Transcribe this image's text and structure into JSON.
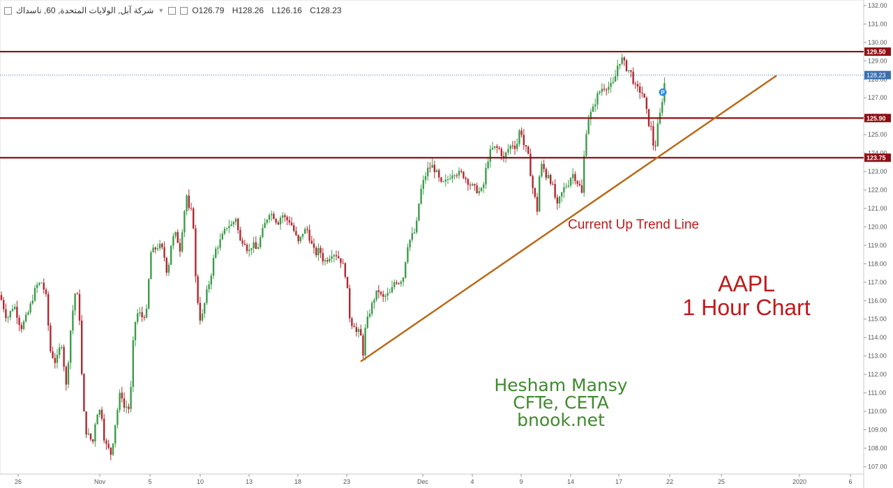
{
  "header": {
    "collapse_icon": "minus-square-icon",
    "symbol_title": "شركة آبل, الولايات المتحدة, 60, ناسداك",
    "dropdown_icon": "chevron-down-icon",
    "settings_icons": [
      "visibility-icon",
      "settings-icon"
    ],
    "ohlc": {
      "open": "O126.79",
      "high": "H128.26",
      "low": "L126.16",
      "close": "C128.23"
    }
  },
  "annotations": {
    "trend_label": "Current Up Trend Line",
    "chart_title_line1": "AAPL",
    "chart_title_line2": "1 Hour Chart",
    "author_name": "Hesham Mansy",
    "author_credentials": "CFTe, CETA",
    "author_site": "bnook.net"
  },
  "colors": {
    "up_candle": "#3c9c4a",
    "down_candle": "#b0272f",
    "support_resistance": "#8e0f14",
    "trend_line": "#b86a18",
    "price_line": "#3a6fb0",
    "annotation_red": "#c0191b",
    "annotation_green": "#3f8a2e",
    "label_bg": "#8e0f14",
    "price_label_bg": "#3a6fb0"
  },
  "chart_data": {
    "type": "candlestick",
    "y_axis": {
      "side": "right",
      "ylim": [
        106.6,
        132.3
      ],
      "ticks": [
        "107.00",
        "108.00",
        "109.00",
        "110.00",
        "111.00",
        "112.00",
        "113.00",
        "114.00",
        "115.00",
        "116.00",
        "117.00",
        "118.00",
        "119.00",
        "120.00",
        "121.00",
        "122.00",
        "123.00",
        "124.00",
        "125.00",
        "126.00",
        "127.00",
        "128.00",
        "129.00",
        "130.00",
        "131.00",
        "132.00"
      ]
    },
    "x_axis": {
      "labels": [
        "26",
        "Nov",
        "5",
        "10",
        "13",
        "18",
        "23",
        "Dec",
        "4",
        "9",
        "14",
        "17",
        "22",
        "25",
        "2020",
        "6"
      ]
    },
    "horizontal_levels": [
      {
        "label": "129.50",
        "value": 129.5
      },
      {
        "label": "125.90",
        "value": 125.9
      },
      {
        "label": "123.75",
        "value": 123.75
      }
    ],
    "current_price": {
      "label": "128.23",
      "value": 128.23
    },
    "trend_line": {
      "from": {
        "x_label": "23",
        "value": 112.7
      },
      "to": {
        "x_label": "22",
        "value": 128.2
      }
    },
    "price_path": [
      [
        0,
        116.3
      ],
      [
        10,
        115.0
      ],
      [
        20,
        115.8
      ],
      [
        30,
        114.5
      ],
      [
        40,
        115.3
      ],
      [
        52,
        116.8
      ],
      [
        60,
        117.0
      ],
      [
        66,
        116.2
      ],
      [
        72,
        113.3
      ],
      [
        80,
        112.6
      ],
      [
        88,
        113.8
      ],
      [
        95,
        111.3
      ],
      [
        102,
        114.8
      ],
      [
        108,
        116.5
      ],
      [
        113,
        116.0
      ],
      [
        118,
        111.2
      ],
      [
        122,
        109.0
      ],
      [
        128,
        108.6
      ],
      [
        133,
        108.3
      ],
      [
        138,
        109.9
      ],
      [
        145,
        110.1
      ],
      [
        150,
        108.3
      ],
      [
        155,
        108.0
      ],
      [
        160,
        107.6
      ],
      [
        163,
        108.8
      ],
      [
        168,
        110.0
      ],
      [
        173,
        111.2
      ],
      [
        178,
        110.2
      ],
      [
        183,
        110.3
      ],
      [
        186,
        110.0
      ],
      [
        192,
        114.6
      ],
      [
        198,
        115.4
      ],
      [
        204,
        115.1
      ],
      [
        210,
        115.4
      ],
      [
        216,
        118.6
      ],
      [
        222,
        118.8
      ],
      [
        228,
        119.0
      ],
      [
        234,
        118.7
      ],
      [
        240,
        117.4
      ],
      [
        246,
        119.3
      ],
      [
        252,
        119.6
      ],
      [
        258,
        118.8
      ],
      [
        264,
        120.8
      ],
      [
        268,
        121.8
      ],
      [
        272,
        120.5
      ],
      [
        276,
        121.2
      ],
      [
        280,
        117.4
      ],
      [
        286,
        115.0
      ],
      [
        290,
        115.2
      ],
      [
        296,
        116.4
      ],
      [
        302,
        117.3
      ],
      [
        308,
        118.7
      ],
      [
        314,
        119.1
      ],
      [
        320,
        119.6
      ],
      [
        326,
        120.1
      ],
      [
        332,
        120.1
      ],
      [
        338,
        120.5
      ],
      [
        344,
        119.2
      ],
      [
        350,
        119.3
      ],
      [
        356,
        118.6
      ],
      [
        362,
        119.1
      ],
      [
        368,
        118.7
      ],
      [
        374,
        119.5
      ],
      [
        380,
        120.2
      ],
      [
        386,
        120.8
      ],
      [
        392,
        120.6
      ],
      [
        398,
        120.2
      ],
      [
        404,
        120.7
      ],
      [
        410,
        120.4
      ],
      [
        416,
        120.3
      ],
      [
        422,
        119.7
      ],
      [
        428,
        119.1
      ],
      [
        434,
        119.7
      ],
      [
        440,
        119.9
      ],
      [
        446,
        119.1
      ],
      [
        452,
        118.5
      ],
      [
        458,
        118.8
      ],
      [
        464,
        118.1
      ],
      [
        470,
        118.3
      ],
      [
        476,
        118.6
      ],
      [
        482,
        118.5
      ],
      [
        488,
        118.2
      ],
      [
        494,
        117.7
      ],
      [
        498,
        116.5
      ],
      [
        502,
        114.8
      ],
      [
        508,
        114.7
      ],
      [
        512,
        114.1
      ],
      [
        516,
        114.5
      ],
      [
        520,
        113.0
      ],
      [
        524,
        114.6
      ],
      [
        530,
        115.4
      ],
      [
        536,
        116.1
      ],
      [
        542,
        116.6
      ],
      [
        548,
        116.1
      ],
      [
        554,
        116.3
      ],
      [
        560,
        116.4
      ],
      [
        566,
        117.1
      ],
      [
        572,
        117.0
      ],
      [
        578,
        117.3
      ],
      [
        584,
        119.0
      ],
      [
        590,
        119.5
      ],
      [
        596,
        119.8
      ],
      [
        602,
        121.8
      ],
      [
        608,
        122.6
      ],
      [
        614,
        123.2
      ],
      [
        620,
        123.3
      ],
      [
        626,
        122.9
      ],
      [
        632,
        122.3
      ],
      [
        638,
        122.4
      ],
      [
        644,
        122.7
      ],
      [
        650,
        123.0
      ],
      [
        656,
        122.9
      ],
      [
        662,
        122.9
      ],
      [
        668,
        122.6
      ],
      [
        674,
        122.3
      ],
      [
        680,
        122.1
      ],
      [
        686,
        121.9
      ],
      [
        692,
        122.0
      ],
      [
        698,
        123.5
      ],
      [
        704,
        124.2
      ],
      [
        710,
        124.3
      ],
      [
        716,
        124.2
      ],
      [
        722,
        123.7
      ],
      [
        728,
        124.2
      ],
      [
        734,
        124.5
      ],
      [
        740,
        124.3
      ],
      [
        746,
        125.5
      ],
      [
        750,
        124.5
      ],
      [
        754,
        124.2
      ],
      [
        758,
        123.7
      ],
      [
        762,
        122.4
      ],
      [
        766,
        121.7
      ],
      [
        770,
        120.9
      ],
      [
        774,
        123.2
      ],
      [
        778,
        123.4
      ],
      [
        782,
        122.7
      ],
      [
        786,
        122.9
      ],
      [
        790,
        122.4
      ],
      [
        794,
        122.0
      ],
      [
        798,
        121.0
      ],
      [
        802,
        121.5
      ],
      [
        806,
        121.9
      ],
      [
        810,
        122.2
      ],
      [
        814,
        122.3
      ],
      [
        818,
        122.7
      ],
      [
        822,
        122.9
      ],
      [
        826,
        122.5
      ],
      [
        830,
        122.3
      ],
      [
        834,
        121.8
      ],
      [
        838,
        124.3
      ],
      [
        842,
        125.8
      ],
      [
        846,
        126.1
      ],
      [
        850,
        126.4
      ],
      [
        856,
        127.1
      ],
      [
        862,
        127.5
      ],
      [
        868,
        127.6
      ],
      [
        874,
        127.6
      ],
      [
        880,
        127.8
      ],
      [
        886,
        128.9
      ],
      [
        892,
        129.1
      ],
      [
        898,
        128.6
      ],
      [
        904,
        128.4
      ],
      [
        910,
        127.6
      ],
      [
        916,
        127.4
      ],
      [
        922,
        127.2
      ],
      [
        926,
        126.4
      ],
      [
        930,
        125.6
      ],
      [
        934,
        125.3
      ],
      [
        938,
        123.9
      ],
      [
        942,
        125.3
      ],
      [
        946,
        126.1
      ],
      [
        950,
        127.1
      ],
      [
        954,
        128.23
      ]
    ]
  }
}
